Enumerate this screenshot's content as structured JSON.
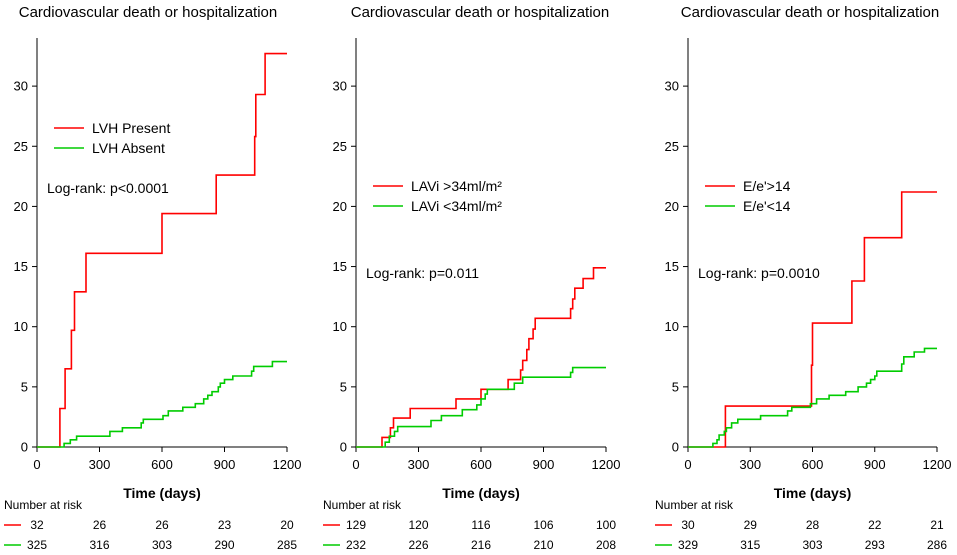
{
  "colors": {
    "red": "#ff0000",
    "green": "#00cc00",
    "axis": "#000000"
  },
  "chart_data": [
    {
      "type": "line",
      "title": "Cardiovascular death or hospitalization",
      "xlabel": "Time (days)",
      "ylabel": "",
      "xlim": [
        0,
        1200
      ],
      "ylim": [
        0,
        34
      ],
      "xticks": [
        0,
        300,
        600,
        900,
        1200
      ],
      "yticks": [
        0,
        5,
        10,
        15,
        20,
        25,
        30
      ],
      "annotation": "Log-rank: p<0.0001",
      "legend_position": "top-left",
      "series": [
        {
          "name": "LVH Present",
          "color": "red",
          "steps": [
            [
              0,
              0
            ],
            [
              110,
              0
            ],
            [
              110,
              3.2
            ],
            [
              135,
              3.2
            ],
            [
              135,
              6.5
            ],
            [
              165,
              6.5
            ],
            [
              165,
              9.7
            ],
            [
              180,
              9.7
            ],
            [
              180,
              12.9
            ],
            [
              235,
              12.9
            ],
            [
              235,
              16.1
            ],
            [
              600,
              16.1
            ],
            [
              600,
              19.4
            ],
            [
              860,
              19.4
            ],
            [
              860,
              22.6
            ],
            [
              1045,
              22.6
            ],
            [
              1045,
              25.8
            ],
            [
              1050,
              25.8
            ],
            [
              1050,
              29.3
            ],
            [
              1095,
              29.3
            ],
            [
              1095,
              32.7
            ],
            [
              1200,
              32.7
            ]
          ]
        },
        {
          "name": "LVH Absent",
          "color": "green",
          "steps": [
            [
              0,
              0
            ],
            [
              130,
              0
            ],
            [
              130,
              0.3
            ],
            [
              160,
              0.3
            ],
            [
              160,
              0.6
            ],
            [
              190,
              0.6
            ],
            [
              190,
              0.9
            ],
            [
              350,
              0.9
            ],
            [
              350,
              1.3
            ],
            [
              410,
              1.3
            ],
            [
              410,
              1.6
            ],
            [
              500,
              1.6
            ],
            [
              500,
              2.0
            ],
            [
              510,
              2.0
            ],
            [
              510,
              2.3
            ],
            [
              605,
              2.3
            ],
            [
              605,
              2.6
            ],
            [
              630,
              2.6
            ],
            [
              630,
              3.0
            ],
            [
              700,
              3.0
            ],
            [
              700,
              3.3
            ],
            [
              760,
              3.3
            ],
            [
              760,
              3.6
            ],
            [
              800,
              3.6
            ],
            [
              800,
              4.0
            ],
            [
              820,
              4.0
            ],
            [
              820,
              4.3
            ],
            [
              840,
              4.3
            ],
            [
              840,
              4.6
            ],
            [
              870,
              4.6
            ],
            [
              870,
              5.0
            ],
            [
              880,
              5.0
            ],
            [
              880,
              5.3
            ],
            [
              900,
              5.3
            ],
            [
              900,
              5.6
            ],
            [
              940,
              5.6
            ],
            [
              940,
              5.9
            ],
            [
              1030,
              5.9
            ],
            [
              1030,
              6.3
            ],
            [
              1040,
              6.3
            ],
            [
              1040,
              6.7
            ],
            [
              1130,
              6.7
            ],
            [
              1130,
              7.1
            ],
            [
              1200,
              7.1
            ]
          ]
        }
      ],
      "risk_table": {
        "title": "Number at risk",
        "times": [
          0,
          300,
          600,
          900,
          1200
        ],
        "rows": [
          {
            "color": "red",
            "values": [
              "32",
              "26",
              "26",
              "23",
              "20"
            ]
          },
          {
            "color": "green",
            "values": [
              "325",
              "316",
              "303",
              "290",
              "285"
            ]
          }
        ]
      }
    },
    {
      "type": "line",
      "title": "Cardiovascular death or hospitalization",
      "xlabel": "Time (days)",
      "ylabel": "",
      "xlim": [
        0,
        1200
      ],
      "ylim": [
        0,
        34
      ],
      "xticks": [
        0,
        300,
        600,
        900,
        1200
      ],
      "yticks": [
        0,
        5,
        10,
        15,
        20,
        25,
        30
      ],
      "annotation": "Log-rank: p=0.011",
      "legend_position": "middle-left",
      "series": [
        {
          "name": "LAVi >34ml/m²",
          "color": "red",
          "steps": [
            [
              0,
              0
            ],
            [
              125,
              0
            ],
            [
              125,
              0.8
            ],
            [
              165,
              0.8
            ],
            [
              165,
              1.6
            ],
            [
              180,
              1.6
            ],
            [
              180,
              2.4
            ],
            [
              260,
              2.4
            ],
            [
              260,
              3.2
            ],
            [
              480,
              3.2
            ],
            [
              480,
              4.0
            ],
            [
              600,
              4.0
            ],
            [
              600,
              4.8
            ],
            [
              730,
              4.8
            ],
            [
              730,
              5.6
            ],
            [
              790,
              5.6
            ],
            [
              790,
              6.4
            ],
            [
              800,
              6.4
            ],
            [
              800,
              7.2
            ],
            [
              820,
              7.2
            ],
            [
              820,
              8.1
            ],
            [
              830,
              8.1
            ],
            [
              830,
              9.0
            ],
            [
              850,
              9.0
            ],
            [
              850,
              9.8
            ],
            [
              860,
              9.8
            ],
            [
              860,
              10.7
            ],
            [
              1030,
              10.7
            ],
            [
              1030,
              11.5
            ],
            [
              1040,
              11.5
            ],
            [
              1040,
              12.3
            ],
            [
              1050,
              12.3
            ],
            [
              1050,
              13.2
            ],
            [
              1090,
              13.2
            ],
            [
              1090,
              14.0
            ],
            [
              1140,
              14.0
            ],
            [
              1140,
              14.9
            ],
            [
              1200,
              14.9
            ]
          ]
        },
        {
          "name": "LAVi <34ml/m²",
          "color": "green",
          "steps": [
            [
              0,
              0
            ],
            [
              140,
              0
            ],
            [
              140,
              0.4
            ],
            [
              160,
              0.4
            ],
            [
              160,
              0.9
            ],
            [
              185,
              0.9
            ],
            [
              185,
              1.3
            ],
            [
              200,
              1.3
            ],
            [
              200,
              1.7
            ],
            [
              360,
              1.7
            ],
            [
              360,
              2.2
            ],
            [
              410,
              2.2
            ],
            [
              410,
              2.6
            ],
            [
              510,
              2.6
            ],
            [
              510,
              3.1
            ],
            [
              580,
              3.1
            ],
            [
              580,
              3.5
            ],
            [
              600,
              3.5
            ],
            [
              600,
              4.0
            ],
            [
              620,
              4.0
            ],
            [
              620,
              4.4
            ],
            [
              630,
              4.4
            ],
            [
              630,
              4.8
            ],
            [
              760,
              4.8
            ],
            [
              760,
              5.3
            ],
            [
              800,
              5.3
            ],
            [
              800,
              5.8
            ],
            [
              1030,
              5.8
            ],
            [
              1030,
              6.2
            ],
            [
              1040,
              6.2
            ],
            [
              1040,
              6.6
            ],
            [
              1200,
              6.6
            ]
          ]
        }
      ],
      "risk_table": {
        "title": "Number at risk",
        "times": [
          0,
          300,
          600,
          900,
          1200
        ],
        "rows": [
          {
            "color": "red",
            "values": [
              "129",
              "120",
              "116",
              "106",
              "100"
            ]
          },
          {
            "color": "green",
            "values": [
              "232",
              "226",
              "216",
              "210",
              "208"
            ]
          }
        ]
      }
    },
    {
      "type": "line",
      "title": "Cardiovascular death or hospitalization",
      "xlabel": "Time (days)",
      "ylabel": "",
      "xlim": [
        0,
        1200
      ],
      "ylim": [
        0,
        34
      ],
      "xticks": [
        0,
        300,
        600,
        900,
        1200
      ],
      "yticks": [
        0,
        5,
        10,
        15,
        20,
        25,
        30
      ],
      "annotation": "Log-rank: p=0.0010",
      "legend_position": "middle-left",
      "series": [
        {
          "name": "E/e'>14",
          "color": "red",
          "steps": [
            [
              0,
              0
            ],
            [
              180,
              0
            ],
            [
              180,
              3.4
            ],
            [
              505,
              3.4
            ],
            [
              505,
              3.4
            ],
            [
              595,
              3.4
            ],
            [
              595,
              6.8
            ],
            [
              600,
              6.8
            ],
            [
              600,
              10.3
            ],
            [
              790,
              10.3
            ],
            [
              790,
              13.8
            ],
            [
              850,
              13.8
            ],
            [
              850,
              17.4
            ],
            [
              1030,
              17.4
            ],
            [
              1030,
              21.2
            ],
            [
              1200,
              21.2
            ]
          ]
        },
        {
          "name": "E/e'<14",
          "color": "green",
          "steps": [
            [
              0,
              0
            ],
            [
              120,
              0
            ],
            [
              120,
              0.3
            ],
            [
              140,
              0.3
            ],
            [
              140,
              0.6
            ],
            [
              150,
              0.6
            ],
            [
              150,
              1.0
            ],
            [
              175,
              1.0
            ],
            [
              175,
              1.3
            ],
            [
              185,
              1.3
            ],
            [
              185,
              1.6
            ],
            [
              210,
              1.6
            ],
            [
              210,
              2.0
            ],
            [
              240,
              2.0
            ],
            [
              240,
              2.3
            ],
            [
              350,
              2.3
            ],
            [
              350,
              2.6
            ],
            [
              480,
              2.6
            ],
            [
              480,
              3.0
            ],
            [
              500,
              3.0
            ],
            [
              500,
              3.3
            ],
            [
              590,
              3.3
            ],
            [
              590,
              3.6
            ],
            [
              620,
              3.6
            ],
            [
              620,
              4.0
            ],
            [
              680,
              4.0
            ],
            [
              680,
              4.3
            ],
            [
              760,
              4.3
            ],
            [
              760,
              4.6
            ],
            [
              820,
              4.6
            ],
            [
              820,
              5.0
            ],
            [
              860,
              5.0
            ],
            [
              860,
              5.3
            ],
            [
              880,
              5.3
            ],
            [
              880,
              5.6
            ],
            [
              900,
              5.6
            ],
            [
              900,
              5.9
            ],
            [
              910,
              5.9
            ],
            [
              910,
              6.3
            ],
            [
              1030,
              6.3
            ],
            [
              1030,
              6.9
            ],
            [
              1040,
              6.9
            ],
            [
              1040,
              7.5
            ],
            [
              1090,
              7.5
            ],
            [
              1090,
              7.9
            ],
            [
              1140,
              7.9
            ],
            [
              1140,
              8.2
            ],
            [
              1200,
              8.2
            ]
          ]
        }
      ],
      "risk_table": {
        "title": "Number at risk",
        "times": [
          0,
          300,
          600,
          900,
          1200
        ],
        "rows": [
          {
            "color": "red",
            "values": [
              "30",
              "29",
              "28",
              "22",
              "21"
            ]
          },
          {
            "color": "green",
            "values": [
              "329",
              "315",
              "303",
              "293",
              "286"
            ]
          }
        ]
      }
    }
  ]
}
